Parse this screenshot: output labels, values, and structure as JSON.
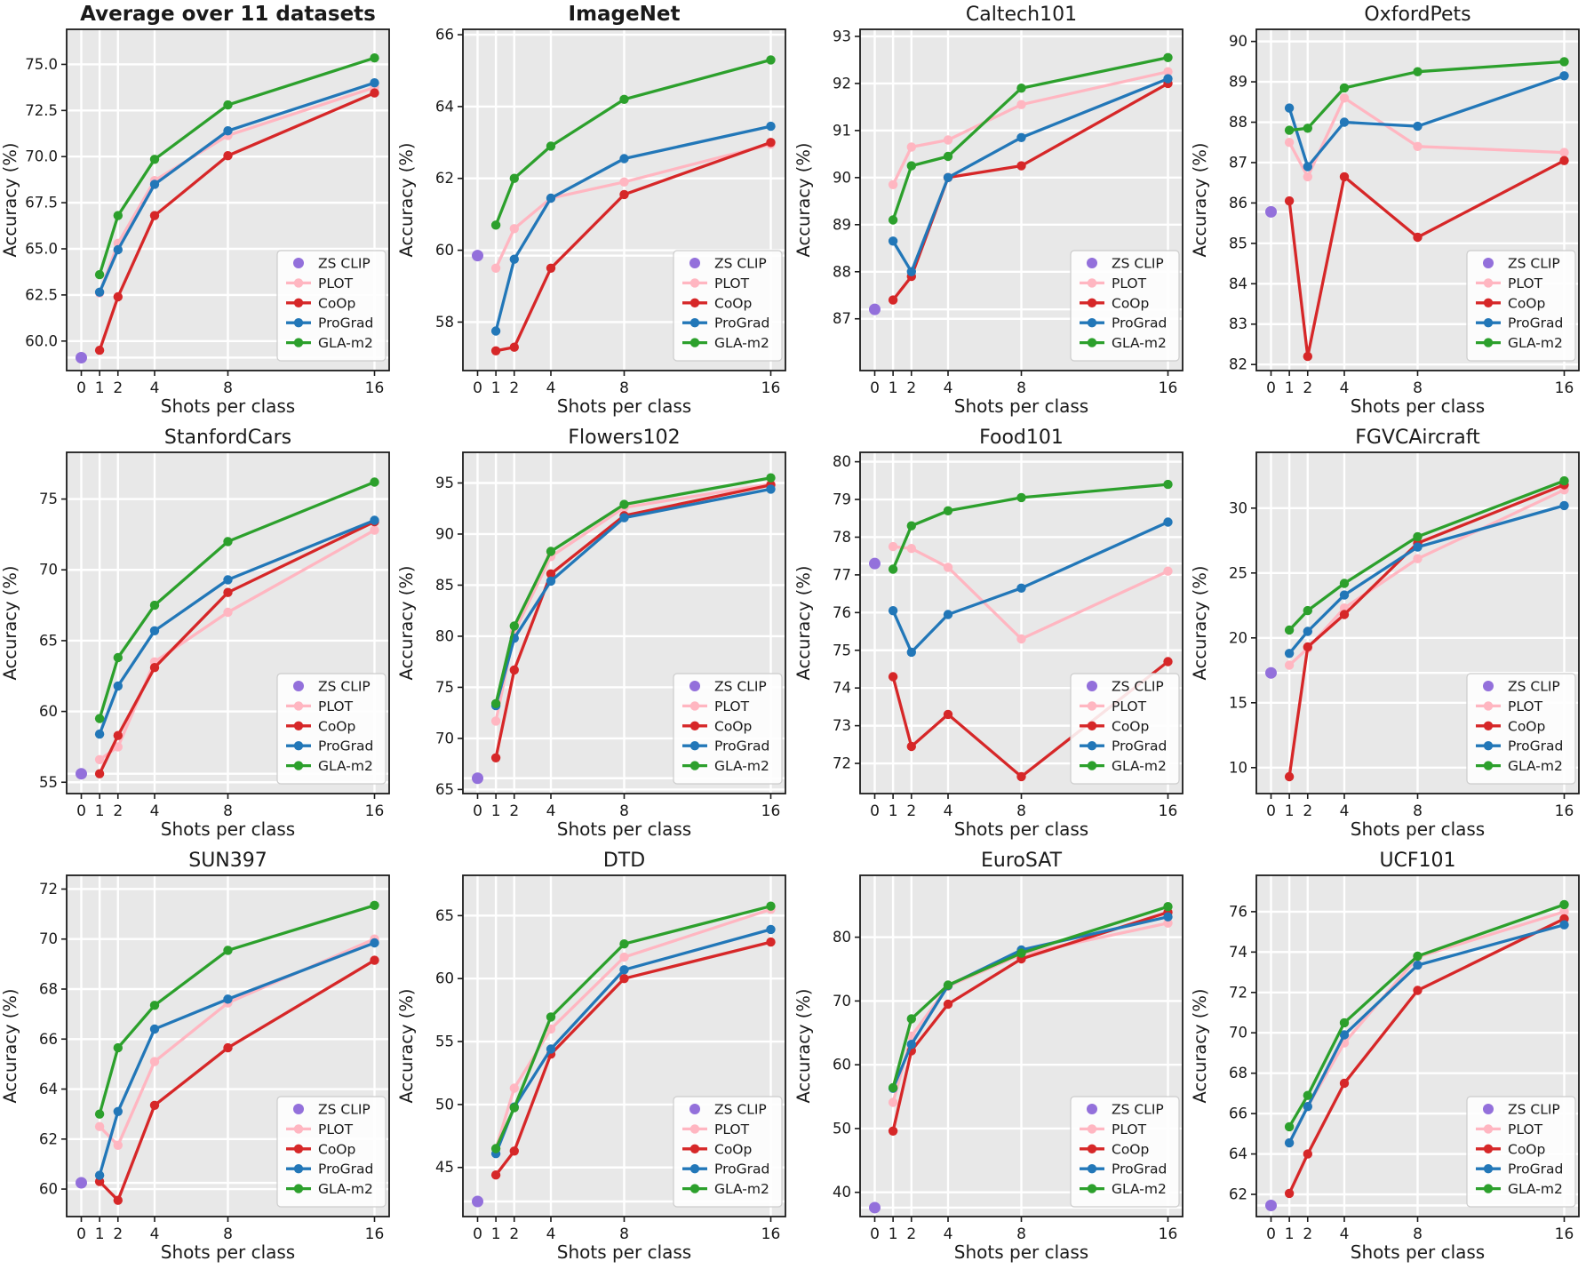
{
  "figure": {
    "xlabel": "Shots per class",
    "ylabel": "Accuracy (%)",
    "x_ticks": {
      "values": [
        0,
        1,
        2,
        4,
        8,
        16
      ],
      "labels": [
        "0",
        "1",
        "2",
        "4",
        "8",
        "16"
      ]
    },
    "shots": [
      1,
      2,
      4,
      8,
      16
    ],
    "plot_bg_color": "#e8e8e8",
    "grid_color": "#ffffff",
    "spine_color": "#1c1c1c"
  },
  "legend": {
    "position": "lower-right",
    "items": [
      {
        "label": "ZS CLIP",
        "color": "#9370db",
        "marker": "dot"
      },
      {
        "label": "PLOT",
        "color": "#ffb6c1",
        "marker": "line-dot"
      },
      {
        "label": "CoOp",
        "color": "#d62728",
        "marker": "line-dot"
      },
      {
        "label": "ProGrad",
        "color": "#2277b8",
        "marker": "line-dot"
      },
      {
        "label": "GLA-m2",
        "color": "#2ca02c",
        "marker": "line-dot"
      }
    ]
  },
  "chart_data": [
    {
      "type": "line",
      "title": "Average over 11 datasets",
      "title_bold": true,
      "zs_clip": 59.1,
      "ylim": [
        58.4,
        76.9
      ],
      "yticks": [
        60,
        62.5,
        65,
        67.5,
        70,
        72.5,
        75
      ],
      "ytick_labels": [
        "60.0",
        "62.5",
        "65.0",
        "67.5",
        "70.0",
        "72.5",
        "75.0"
      ],
      "series": [
        {
          "name": "PLOT",
          "values": [
            62.6,
            65.3,
            68.7,
            71.15,
            73.75
          ]
        },
        {
          "name": "CoOp",
          "values": [
            59.5,
            62.4,
            66.8,
            70.05,
            73.45
          ]
        },
        {
          "name": "ProGrad",
          "values": [
            62.65,
            64.95,
            68.5,
            71.4,
            74.0
          ]
        },
        {
          "name": "GLA-m2",
          "values": [
            63.6,
            66.8,
            69.85,
            72.8,
            75.35
          ]
        }
      ]
    },
    {
      "type": "line",
      "title": "ImageNet",
      "title_bold": true,
      "zs_clip": 59.85,
      "ylim": [
        56.65,
        66.15
      ],
      "yticks": [
        58,
        60,
        62,
        64,
        66
      ],
      "ytick_labels": [
        "58",
        "60",
        "62",
        "64",
        "66"
      ],
      "series": [
        {
          "name": "PLOT",
          "values": [
            59.5,
            60.6,
            61.45,
            61.9,
            62.95
          ]
        },
        {
          "name": "CoOp",
          "values": [
            57.2,
            57.3,
            59.5,
            61.55,
            63.0
          ]
        },
        {
          "name": "ProGrad",
          "values": [
            57.75,
            59.75,
            61.45,
            62.55,
            63.45
          ]
        },
        {
          "name": "GLA-m2",
          "values": [
            60.7,
            62.0,
            62.9,
            64.2,
            65.3
          ]
        }
      ]
    },
    {
      "type": "line",
      "title": "Caltech101",
      "title_bold": false,
      "zs_clip": 87.2,
      "ylim": [
        85.9,
        93.15
      ],
      "yticks": [
        87,
        88,
        89,
        90,
        91,
        92,
        93
      ],
      "ytick_labels": [
        "87",
        "88",
        "89",
        "90",
        "91",
        "92",
        "93"
      ],
      "series": [
        {
          "name": "PLOT",
          "values": [
            89.85,
            90.65,
            90.8,
            91.55,
            92.25
          ]
        },
        {
          "name": "CoOp",
          "values": [
            87.4,
            87.9,
            90.0,
            90.25,
            92.0
          ]
        },
        {
          "name": "ProGrad",
          "values": [
            88.65,
            88.0,
            90.0,
            90.85,
            92.1
          ]
        },
        {
          "name": "GLA-m2",
          "values": [
            89.1,
            90.25,
            90.45,
            91.9,
            92.55
          ]
        }
      ]
    },
    {
      "type": "line",
      "title": "OxfordPets",
      "title_bold": false,
      "zs_clip": 85.78,
      "ylim": [
        81.85,
        90.3
      ],
      "yticks": [
        82,
        83,
        84,
        85,
        86,
        87,
        88,
        89,
        90
      ],
      "ytick_labels": [
        "82",
        "83",
        "84",
        "85",
        "86",
        "87",
        "88",
        "89",
        "90"
      ],
      "series": [
        {
          "name": "PLOT",
          "values": [
            87.5,
            86.65,
            88.6,
            87.4,
            87.25
          ]
        },
        {
          "name": "CoOp",
          "values": [
            86.05,
            82.2,
            86.65,
            85.15,
            87.05
          ]
        },
        {
          "name": "ProGrad",
          "values": [
            88.35,
            86.9,
            88.0,
            87.9,
            89.15
          ]
        },
        {
          "name": "GLA-m2",
          "values": [
            87.8,
            87.85,
            88.85,
            89.25,
            89.5
          ]
        }
      ]
    },
    {
      "type": "line",
      "title": "StanfordCars",
      "title_bold": false,
      "zs_clip": 55.6,
      "ylim": [
        54.2,
        78.3
      ],
      "yticks": [
        55,
        60,
        65,
        70,
        75
      ],
      "ytick_labels": [
        "55",
        "60",
        "65",
        "70",
        "75"
      ],
      "series": [
        {
          "name": "PLOT",
          "values": [
            56.6,
            57.5,
            63.5,
            67.0,
            72.8
          ]
        },
        {
          "name": "CoOp",
          "values": [
            55.6,
            58.3,
            63.1,
            68.4,
            73.4
          ]
        },
        {
          "name": "ProGrad",
          "values": [
            58.4,
            61.8,
            65.7,
            69.3,
            73.5
          ]
        },
        {
          "name": "GLA-m2",
          "values": [
            59.5,
            63.8,
            67.5,
            72.0,
            76.2
          ]
        }
      ]
    },
    {
      "type": "line",
      "title": "Flowers102",
      "title_bold": false,
      "zs_clip": 66.1,
      "ylim": [
        64.6,
        98.0
      ],
      "yticks": [
        65,
        70,
        75,
        80,
        85,
        90,
        95
      ],
      "ytick_labels": [
        "65",
        "70",
        "75",
        "80",
        "85",
        "90",
        "95"
      ],
      "series": [
        {
          "name": "PLOT",
          "values": [
            71.7,
            80.4,
            87.8,
            92.6,
            94.9
          ]
        },
        {
          "name": "CoOp",
          "values": [
            68.1,
            76.7,
            86.1,
            91.8,
            94.8
          ]
        },
        {
          "name": "ProGrad",
          "values": [
            73.2,
            79.8,
            85.4,
            91.6,
            94.4
          ]
        },
        {
          "name": "GLA-m2",
          "values": [
            73.4,
            81.0,
            88.3,
            92.9,
            95.5
          ]
        }
      ]
    },
    {
      "type": "line",
      "title": "Food101",
      "title_bold": false,
      "zs_clip": 77.3,
      "ylim": [
        71.2,
        80.25
      ],
      "yticks": [
        72,
        73,
        74,
        75,
        76,
        77,
        78,
        79,
        80
      ],
      "ytick_labels": [
        "72",
        "73",
        "74",
        "75",
        "76",
        "77",
        "78",
        "79",
        "80"
      ],
      "series": [
        {
          "name": "PLOT",
          "values": [
            77.75,
            77.7,
            77.2,
            75.3,
            77.1
          ]
        },
        {
          "name": "CoOp",
          "values": [
            74.3,
            72.45,
            73.3,
            71.65,
            74.7
          ]
        },
        {
          "name": "ProGrad",
          "values": [
            76.05,
            74.95,
            75.95,
            76.65,
            78.4
          ]
        },
        {
          "name": "GLA-m2",
          "values": [
            77.15,
            78.3,
            78.7,
            79.05,
            79.4
          ]
        }
      ]
    },
    {
      "type": "line",
      "title": "FGVCAircraft",
      "title_bold": false,
      "zs_clip": 17.3,
      "ylim": [
        8.0,
        34.3
      ],
      "yticks": [
        10,
        15,
        20,
        25,
        30
      ],
      "ytick_labels": [
        "10",
        "15",
        "20",
        "25",
        "30"
      ],
      "series": [
        {
          "name": "PLOT",
          "values": [
            17.9,
            19.2,
            22.3,
            26.1,
            31.4
          ]
        },
        {
          "name": "CoOp",
          "values": [
            9.3,
            19.3,
            21.8,
            27.3,
            31.8
          ]
        },
        {
          "name": "ProGrad",
          "values": [
            18.8,
            20.5,
            23.3,
            27.0,
            30.2
          ]
        },
        {
          "name": "GLA-m2",
          "values": [
            20.6,
            22.1,
            24.2,
            27.8,
            32.1
          ]
        }
      ]
    },
    {
      "type": "line",
      "title": "SUN397",
      "title_bold": false,
      "zs_clip": 60.25,
      "ylim": [
        58.9,
        72.55
      ],
      "yticks": [
        60,
        62,
        64,
        66,
        68,
        70,
        72
      ],
      "ytick_labels": [
        "60",
        "62",
        "64",
        "66",
        "68",
        "70",
        "72"
      ],
      "series": [
        {
          "name": "PLOT",
          "values": [
            62.5,
            61.75,
            65.1,
            67.45,
            70.0
          ]
        },
        {
          "name": "CoOp",
          "values": [
            60.3,
            59.55,
            63.35,
            65.65,
            69.15
          ]
        },
        {
          "name": "ProGrad",
          "values": [
            60.55,
            63.1,
            66.4,
            67.6,
            69.85
          ]
        },
        {
          "name": "GLA-m2",
          "values": [
            63.0,
            65.65,
            67.35,
            69.55,
            71.35
          ]
        }
      ]
    },
    {
      "type": "line",
      "title": "DTD",
      "title_bold": false,
      "zs_clip": 42.3,
      "ylim": [
        41.1,
        68.2
      ],
      "yticks": [
        45,
        50,
        55,
        60,
        65
      ],
      "ytick_labels": [
        "45",
        "50",
        "55",
        "60",
        "65"
      ],
      "series": [
        {
          "name": "PLOT",
          "values": [
            46.5,
            51.3,
            56.0,
            61.7,
            65.5
          ]
        },
        {
          "name": "CoOp",
          "values": [
            44.4,
            46.3,
            54.0,
            60.0,
            62.9
          ]
        },
        {
          "name": "ProGrad",
          "values": [
            46.1,
            49.8,
            54.4,
            60.7,
            63.9
          ]
        },
        {
          "name": "GLA-m2",
          "values": [
            46.5,
            49.75,
            56.95,
            62.75,
            65.75
          ]
        }
      ]
    },
    {
      "type": "line",
      "title": "EuroSAT",
      "title_bold": false,
      "zs_clip": 37.6,
      "ylim": [
        36.2,
        89.7
      ],
      "yticks": [
        40,
        50,
        60,
        70,
        80
      ],
      "ytick_labels": [
        "40",
        "50",
        "60",
        "70",
        "80"
      ],
      "series": [
        {
          "name": "PLOT",
          "values": [
            54.1,
            64.5,
            72.3,
            77.3,
            82.2
          ]
        },
        {
          "name": "CoOp",
          "values": [
            49.6,
            62.2,
            69.5,
            76.6,
            83.9
          ]
        },
        {
          "name": "ProGrad",
          "values": [
            56.3,
            63.2,
            72.4,
            78.0,
            83.2
          ]
        },
        {
          "name": "GLA-m2",
          "values": [
            56.4,
            67.2,
            72.5,
            77.5,
            84.8
          ]
        }
      ]
    },
    {
      "type": "line",
      "title": "UCF101",
      "title_bold": false,
      "zs_clip": 61.45,
      "ylim": [
        60.9,
        77.8
      ],
      "yticks": [
        62,
        64,
        66,
        68,
        70,
        72,
        74,
        76
      ],
      "ytick_labels": [
        "62",
        "64",
        "66",
        "68",
        "70",
        "72",
        "74",
        "76"
      ],
      "series": [
        {
          "name": "PLOT",
          "values": [
            64.55,
            66.35,
            69.5,
            73.75,
            76.0
          ]
        },
        {
          "name": "CoOp",
          "values": [
            62.05,
            64.0,
            67.5,
            72.1,
            75.65
          ]
        },
        {
          "name": "ProGrad",
          "values": [
            64.55,
            66.35,
            69.9,
            73.35,
            75.35
          ]
        },
        {
          "name": "GLA-m2",
          "values": [
            65.35,
            66.9,
            70.5,
            73.8,
            76.35
          ]
        }
      ]
    }
  ]
}
